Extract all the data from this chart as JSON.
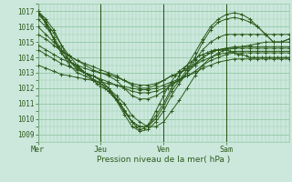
{
  "bg_color": "#cce8dd",
  "plot_bg_color": "#cce8dd",
  "grid_color": "#99ccaa",
  "line_color": "#2d5a1b",
  "xlabel": "Pression niveau de la mer( hPa )",
  "ylim": [
    1008.5,
    1017.5
  ],
  "yticks": [
    1009,
    1010,
    1011,
    1012,
    1013,
    1014,
    1015,
    1016,
    1017
  ],
  "day_labels": [
    "Mer",
    "Jeu",
    "Ven",
    "Sam"
  ],
  "day_positions": [
    0,
    32,
    64,
    96
  ],
  "total_steps": 128,
  "lines": [
    {
      "x": [
        0,
        2,
        4,
        6,
        8,
        10,
        12,
        14,
        16,
        18,
        20,
        22,
        24,
        26,
        28,
        30,
        32,
        34,
        36,
        38,
        40,
        42,
        44,
        46,
        48,
        50,
        52,
        54,
        56,
        58,
        60,
        62,
        64,
        66,
        68,
        70,
        72,
        74,
        76,
        78,
        80,
        82,
        84,
        86,
        88,
        90,
        92,
        94,
        96,
        98,
        100,
        102,
        104,
        106,
        108,
        110,
        112,
        114,
        116,
        118,
        120,
        122,
        124,
        126,
        128
      ],
      "y": [
        1017,
        1016.7,
        1016.3,
        1015.8,
        1015.2,
        1014.7,
        1014.3,
        1014.0,
        1013.8,
        1013.6,
        1013.4,
        1013.2,
        1013.0,
        1012.8,
        1012.5,
        1012.3,
        1012.1,
        1012.0,
        1011.8,
        1011.6,
        1011.3,
        1011.0,
        1010.6,
        1010.2,
        1009.8,
        1009.5,
        1009.3,
        1009.4,
        1009.6,
        1010.0,
        1010.5,
        1011.0,
        1011.5,
        1012.0,
        1012.4,
        1012.8,
        1013.1,
        1013.3,
        1013.5,
        1013.7,
        1013.9,
        1014.1,
        1014.2,
        1014.3,
        1014.4,
        1014.5,
        1014.5,
        1014.5,
        1014.5,
        1014.4,
        1014.3,
        1014.2,
        1014.2,
        1014.1,
        1014.0,
        1014.0,
        1014.0,
        1014.0,
        1014.0,
        1014.0,
        1014.0,
        1014.0,
        1014.0,
        1014.0,
        1014.0
      ]
    },
    {
      "x": [
        0,
        4,
        8,
        12,
        16,
        20,
        24,
        28,
        32,
        36,
        40,
        44,
        48,
        52,
        56,
        60,
        64,
        68,
        72,
        76,
        80,
        84,
        88,
        92,
        96,
        100,
        104,
        108,
        112,
        116,
        120,
        124,
        128
      ],
      "y": [
        1017,
        1016.2,
        1015.2,
        1014.3,
        1013.5,
        1013.0,
        1012.8,
        1012.5,
        1012.3,
        1012.0,
        1011.5,
        1011.0,
        1010.2,
        1009.8,
        1009.5,
        1009.5,
        1009.8,
        1010.5,
        1011.2,
        1012.0,
        1012.8,
        1013.5,
        1014.0,
        1014.3,
        1014.5,
        1014.6,
        1014.7,
        1014.8,
        1014.9,
        1015.0,
        1015.0,
        1015.0,
        1015.0
      ]
    },
    {
      "x": [
        0,
        4,
        8,
        12,
        16,
        20,
        24,
        28,
        32,
        36,
        40,
        44,
        48,
        52,
        56,
        60,
        64,
        68,
        72,
        76,
        80,
        84,
        88,
        92,
        96,
        100,
        104,
        108,
        112,
        116,
        120,
        124,
        128
      ],
      "y": [
        1017,
        1016.5,
        1015.8,
        1014.8,
        1013.8,
        1013.2,
        1013.0,
        1012.8,
        1012.5,
        1012.0,
        1011.2,
        1010.3,
        1009.5,
        1009.2,
        1009.3,
        1009.8,
        1010.5,
        1011.5,
        1012.3,
        1013.0,
        1013.8,
        1014.5,
        1015.0,
        1015.3,
        1015.5,
        1015.5,
        1015.5,
        1015.5,
        1015.5,
        1015.5,
        1015.5,
        1015.5,
        1015.5
      ]
    },
    {
      "x": [
        0,
        4,
        8,
        12,
        16,
        20,
        24,
        28,
        32,
        36,
        40,
        44,
        48,
        52,
        56,
        60,
        64,
        68,
        72,
        76,
        80,
        84,
        88,
        92,
        96,
        100,
        104,
        108,
        112,
        116,
        120,
        124,
        128
      ],
      "y": [
        1016.5,
        1016.0,
        1015.3,
        1014.5,
        1013.8,
        1013.3,
        1013.0,
        1012.8,
        1012.5,
        1012.0,
        1011.3,
        1010.5,
        1009.8,
        1009.5,
        1009.5,
        1010.0,
        1010.8,
        1011.8,
        1012.5,
        1013.2,
        1014.0,
        1015.0,
        1015.8,
        1016.3,
        1016.5,
        1016.6,
        1016.5,
        1016.3,
        1016.0,
        1015.5,
        1015.0,
        1015.0,
        1015.2
      ]
    },
    {
      "x": [
        0,
        4,
        8,
        12,
        16,
        20,
        24,
        28,
        32,
        36,
        40,
        44,
        48,
        52,
        56,
        60,
        64,
        68,
        72,
        76,
        80,
        84,
        88,
        92,
        96,
        100,
        104,
        108,
        112,
        116,
        120,
        124,
        128
      ],
      "y": [
        1016.8,
        1016.3,
        1015.6,
        1014.8,
        1014.1,
        1013.5,
        1013.0,
        1012.6,
        1012.3,
        1011.8,
        1011.2,
        1010.5,
        1009.8,
        1009.5,
        1009.5,
        1010.2,
        1011.0,
        1012.0,
        1012.8,
        1013.5,
        1014.3,
        1015.2,
        1016.0,
        1016.5,
        1016.8,
        1016.9,
        1016.8,
        1016.5,
        1016.0,
        1015.5,
        1015.0,
        1015.0,
        1015.2
      ]
    },
    {
      "x": [
        0,
        4,
        8,
        12,
        16,
        20,
        24,
        28,
        32,
        36,
        40,
        44,
        48,
        52,
        56,
        60,
        64,
        68,
        72,
        76,
        80,
        84,
        88,
        92,
        96,
        100,
        104,
        108,
        112,
        116,
        120,
        124,
        128
      ],
      "y": [
        1016.0,
        1015.5,
        1015.0,
        1014.5,
        1014.1,
        1013.8,
        1013.5,
        1013.2,
        1013.0,
        1012.8,
        1012.5,
        1012.0,
        1011.5,
        1011.3,
        1011.3,
        1011.5,
        1011.8,
        1012.2,
        1012.5,
        1013.0,
        1013.5,
        1014.0,
        1014.3,
        1014.5,
        1014.6,
        1014.7,
        1014.7,
        1014.7,
        1014.7,
        1014.7,
        1014.7,
        1014.7,
        1014.7
      ]
    },
    {
      "x": [
        0,
        4,
        8,
        12,
        16,
        20,
        24,
        28,
        32,
        36,
        40,
        44,
        48,
        52,
        56,
        60,
        64,
        68,
        72,
        76,
        80,
        84,
        88,
        92,
        96,
        100,
        104,
        108,
        112,
        116,
        120,
        124,
        128
      ],
      "y": [
        1015.5,
        1015.2,
        1014.8,
        1014.4,
        1014.1,
        1013.8,
        1013.6,
        1013.4,
        1013.2,
        1013.0,
        1012.8,
        1012.5,
        1012.2,
        1012.0,
        1012.0,
        1012.2,
        1012.5,
        1012.8,
        1013.0,
        1013.3,
        1013.6,
        1014.0,
        1014.3,
        1014.5,
        1014.6,
        1014.6,
        1014.6,
        1014.6,
        1014.6,
        1014.6,
        1014.6,
        1014.6,
        1014.6
      ]
    },
    {
      "x": [
        0,
        4,
        8,
        12,
        16,
        20,
        24,
        28,
        32,
        36,
        40,
        44,
        48,
        52,
        56,
        60,
        64,
        68,
        72,
        76,
        80,
        84,
        88,
        92,
        96,
        100,
        104,
        108,
        112,
        116,
        120,
        124,
        128
      ],
      "y": [
        1014.8,
        1014.5,
        1014.2,
        1013.9,
        1013.7,
        1013.5,
        1013.3,
        1013.1,
        1013.0,
        1012.9,
        1012.7,
        1012.5,
        1012.3,
        1012.2,
        1012.2,
        1012.3,
        1012.5,
        1012.8,
        1013.0,
        1013.2,
        1013.5,
        1013.8,
        1014.0,
        1014.2,
        1014.3,
        1014.4,
        1014.4,
        1014.4,
        1014.4,
        1014.4,
        1014.4,
        1014.4,
        1014.4
      ]
    },
    {
      "x": [
        0,
        4,
        8,
        12,
        16,
        20,
        24,
        28,
        32,
        36,
        40,
        44,
        48,
        52,
        56,
        60,
        64,
        68,
        72,
        76,
        80,
        84,
        88,
        92,
        96,
        100,
        104,
        108,
        112,
        116,
        120,
        124,
        128
      ],
      "y": [
        1014.5,
        1014.2,
        1013.9,
        1013.6,
        1013.4,
        1013.2,
        1013.0,
        1012.8,
        1012.6,
        1012.4,
        1012.2,
        1012.0,
        1011.8,
        1011.7,
        1011.7,
        1011.8,
        1012.0,
        1012.3,
        1012.5,
        1012.8,
        1013.1,
        1013.5,
        1013.8,
        1014.0,
        1014.2,
        1014.3,
        1014.3,
        1014.3,
        1014.3,
        1014.3,
        1014.3,
        1014.3,
        1014.3
      ]
    },
    {
      "x": [
        0,
        4,
        8,
        12,
        16,
        20,
        24,
        28,
        32,
        36,
        40,
        44,
        48,
        52,
        56,
        60,
        64,
        68,
        72,
        76,
        80,
        84,
        88,
        92,
        96,
        100,
        104,
        108,
        112,
        116,
        120,
        124,
        128
      ],
      "y": [
        1013.5,
        1013.3,
        1013.1,
        1012.9,
        1012.8,
        1012.7,
        1012.6,
        1012.5,
        1012.4,
        1012.3,
        1012.2,
        1012.1,
        1012.0,
        1011.9,
        1011.9,
        1012.0,
        1012.2,
        1012.4,
        1012.6,
        1012.8,
        1013.0,
        1013.3,
        1013.5,
        1013.7,
        1013.8,
        1013.9,
        1013.9,
        1013.9,
        1013.9,
        1013.9,
        1013.9,
        1013.9,
        1013.9
      ]
    }
  ]
}
